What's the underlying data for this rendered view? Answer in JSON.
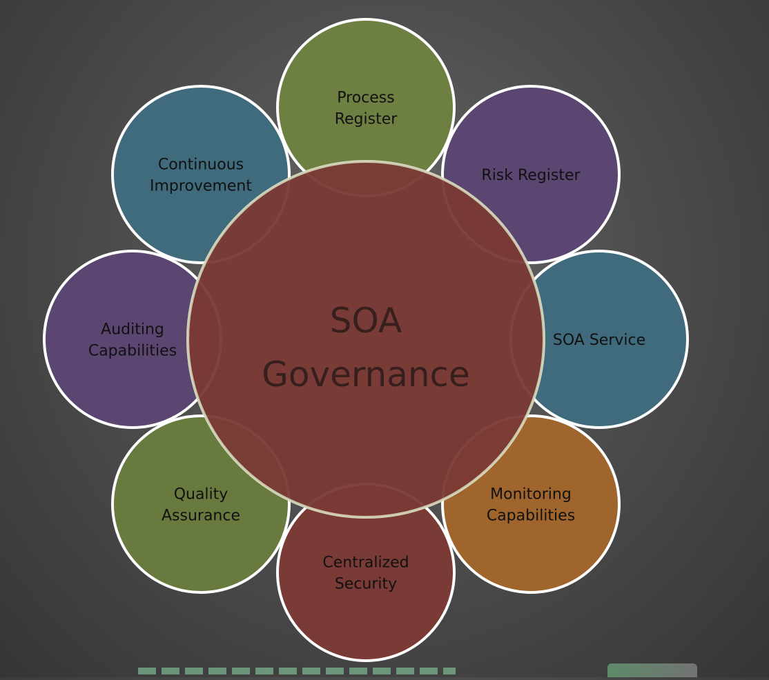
{
  "diagram": {
    "center": {
      "line1": "SOA",
      "line2": "Governance",
      "color": "#7a3a35"
    },
    "satellites": [
      {
        "id": "process-register",
        "lines": [
          "Process",
          "Register"
        ],
        "color": "#6e7f42"
      },
      {
        "id": "risk-register",
        "lines": [
          "Risk Register"
        ],
        "color": "#5b4571"
      },
      {
        "id": "soa-service",
        "lines": [
          "SOA Service"
        ],
        "color": "#3f6b7c"
      },
      {
        "id": "monitoring-capabilities",
        "lines": [
          "Monitoring",
          "Capabilities"
        ],
        "color": "#a0652d"
      },
      {
        "id": "centralized-security",
        "lines": [
          "Centralized",
          "Security"
        ],
        "color": "#7a3a35"
      },
      {
        "id": "quality-assurance",
        "lines": [
          "Quality",
          "Assurance"
        ],
        "color": "#687a3e"
      },
      {
        "id": "auditing-capabilities",
        "lines": [
          "Auditing",
          "Capabilities"
        ],
        "color": "#5b4571"
      },
      {
        "id": "continuous-improvement",
        "lines": [
          "Continuous",
          "Improvement"
        ],
        "color": "#3f6b7c"
      }
    ],
    "outline_color": "#ffffff",
    "center_outline_color": "#d8dcc0"
  }
}
